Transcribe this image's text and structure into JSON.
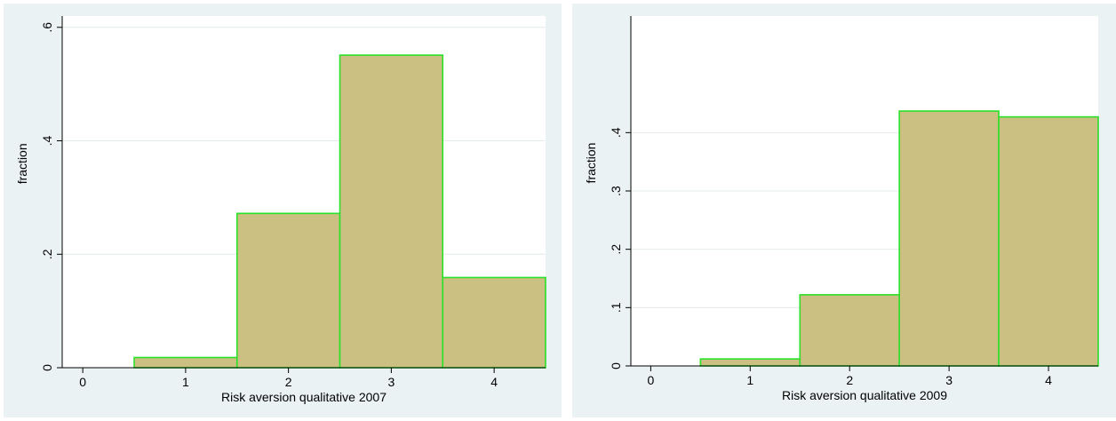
{
  "chart_data": [
    {
      "type": "bar",
      "categories": [
        "1",
        "2",
        "3",
        "4"
      ],
      "values": [
        0.018,
        0.272,
        0.551,
        0.159
      ],
      "xlabel": "Risk aversion qualitative 2007",
      "ylabel": "fraction",
      "xlim": [
        -0.2,
        4.5
      ],
      "ylim": [
        0,
        0.62
      ],
      "xticks": [
        0,
        1,
        2,
        3,
        4
      ],
      "xtick_labels": [
        "0",
        "1",
        "2",
        "3",
        "4"
      ],
      "yticks": [
        0,
        0.2,
        0.4,
        0.6
      ],
      "ytick_labels": [
        "0",
        ".2",
        ".4",
        ".6"
      ],
      "grid": true,
      "colors": {
        "bar_fill": "#cbbf82",
        "bar_edge": "#2be02b",
        "plot_bg": "#ffffff",
        "outer_bg": "#eaf2f3",
        "grid": "#e4ecee"
      }
    },
    {
      "type": "bar",
      "categories": [
        "1",
        "2",
        "3",
        "4"
      ],
      "values": [
        0.012,
        0.122,
        0.437,
        0.427
      ],
      "xlabel": "Risk aversion qualitative 2009",
      "ylabel": "fraction",
      "xlim": [
        -0.2,
        4.5
      ],
      "ylim": [
        0,
        0.6
      ],
      "xticks": [
        0,
        1,
        2,
        3,
        4
      ],
      "xtick_labels": [
        "0",
        "1",
        "2",
        "3",
        "4"
      ],
      "yticks": [
        0,
        0.1,
        0.2,
        0.3,
        0.4
      ],
      "ytick_labels": [
        "0",
        ".1",
        ".2",
        ".3",
        ".4"
      ],
      "grid": true,
      "colors": {
        "bar_fill": "#cbbf82",
        "bar_edge": "#2be02b",
        "plot_bg": "#ffffff",
        "outer_bg": "#eaf2f3",
        "grid": "#e4ecee"
      }
    }
  ]
}
